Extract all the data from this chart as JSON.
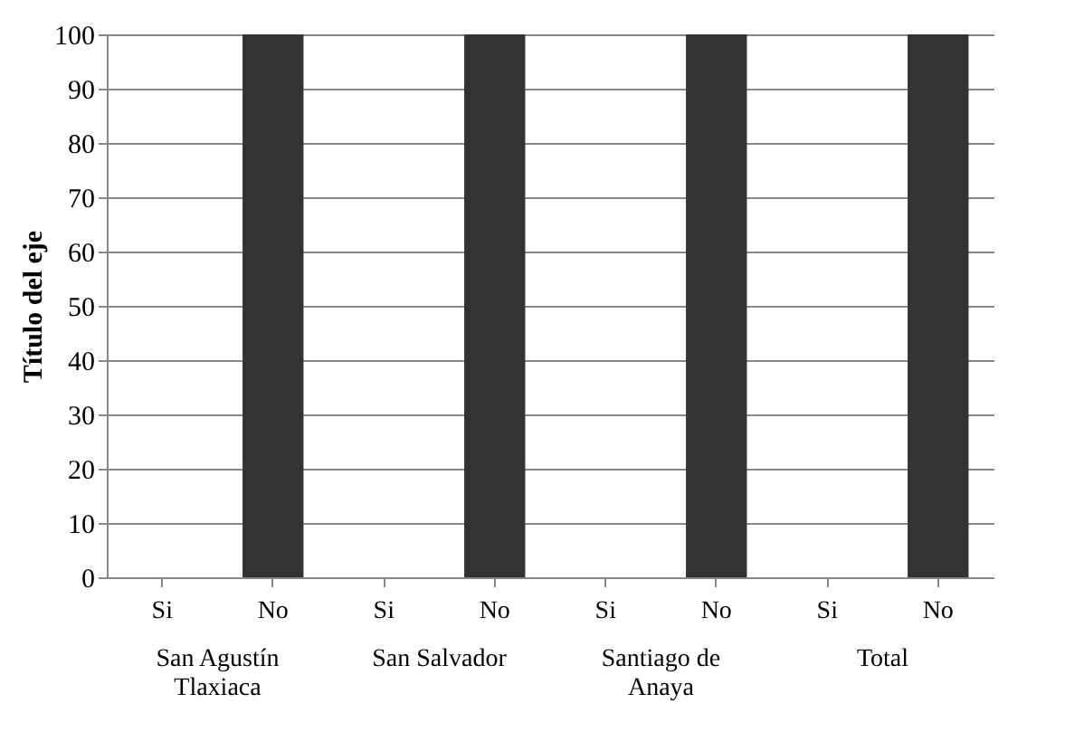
{
  "chart_data": {
    "type": "bar",
    "ylabel": "Título del eje",
    "categories": [
      "Si",
      "No",
      "Si",
      "No",
      "Si",
      "No",
      "Si",
      "No"
    ],
    "values": [
      0,
      100,
      0,
      100,
      0,
      100,
      0,
      100
    ],
    "color": "#333333",
    "ylim": [
      0,
      100
    ],
    "yticks": [
      0,
      10,
      20,
      30,
      40,
      50,
      60,
      70,
      80,
      90,
      100
    ],
    "grid": "y",
    "annotations": [
      "San Agustín\nTlaxiaca",
      "San Salvador",
      "Santiago de\nAnaya",
      "Total"
    ]
  }
}
